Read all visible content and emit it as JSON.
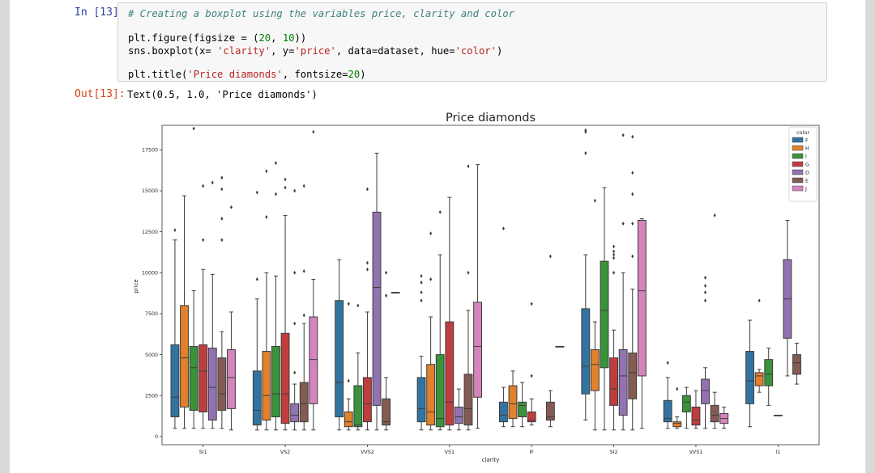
{
  "notebook": {
    "input_prompt": "In [13]:",
    "output_prompt": "Out[13]:",
    "code": {
      "comment": "# Creating a boxplot using the variables price, clarity and color",
      "l2a": "plt.figure(figsize = (",
      "l2n1": "20",
      "l2b": ", ",
      "l2n2": "10",
      "l2c": "))",
      "l3a": "sns.boxplot(x= ",
      "l3s1": "'clarity'",
      "l3b": ", y=",
      "l3s2": "'price'",
      "l3c": ", data=dataset, hue=",
      "l3s3": "'color'",
      "l3d": ")",
      "l4a": "plt.title(",
      "l4s1": "'Price diamonds'",
      "l4b": ", fontsize=",
      "l4n": "20",
      "l4c": ")"
    },
    "output": "Text(0.5, 1.0, 'Price diamonds')"
  },
  "colors": {
    "F": "#3274a1",
    "H": "#e1812c",
    "I": "#3a923a",
    "G": "#c03d3e",
    "D": "#9372b2",
    "E": "#845b53",
    "J": "#d684bd"
  },
  "chart_data": {
    "type": "box",
    "title": "Price diamonds",
    "xlabel": "clarity",
    "ylabel": "price",
    "ylim": [
      -500,
      19000
    ],
    "yticks": [
      0,
      2500,
      5000,
      7500,
      10000,
      12500,
      15000,
      17500
    ],
    "categories": [
      "SI1",
      "VS2",
      "VVS2",
      "VS1",
      "IF",
      "SI2",
      "VVS1",
      "I1"
    ],
    "hue_order": [
      "F",
      "H",
      "I",
      "G",
      "D",
      "E",
      "J"
    ],
    "legend": {
      "title": "color",
      "entries": [
        "F",
        "H",
        "I",
        "G",
        "D",
        "E",
        "J"
      ],
      "loc": "upper right"
    },
    "boxes": [
      {
        "clarity": "SI1",
        "color": "F",
        "lo": 500,
        "q1": 1200,
        "med": 2400,
        "q3": 5600,
        "hi": 12000,
        "out": [
          12600
        ]
      },
      {
        "clarity": "SI1",
        "color": "H",
        "lo": 500,
        "q1": 1800,
        "med": 4800,
        "q3": 8000,
        "hi": 14700,
        "out": []
      },
      {
        "clarity": "SI1",
        "color": "I",
        "lo": 500,
        "q1": 1600,
        "med": 4200,
        "q3": 5500,
        "hi": 8900,
        "out": [
          18800
        ]
      },
      {
        "clarity": "SI1",
        "color": "G",
        "lo": 500,
        "q1": 1500,
        "med": 4000,
        "q3": 5600,
        "hi": 10200,
        "out": [
          12000,
          15300
        ]
      },
      {
        "clarity": "SI1",
        "color": "D",
        "lo": 500,
        "q1": 1000,
        "med": 3000,
        "q3": 5400,
        "hi": 9900,
        "out": [
          15500
        ]
      },
      {
        "clarity": "SI1",
        "color": "E",
        "lo": 500,
        "q1": 1600,
        "med": 2600,
        "q3": 4800,
        "hi": 6400,
        "out": [
          12000,
          13300,
          15100,
          15800
        ]
      },
      {
        "clarity": "SI1",
        "color": "J",
        "lo": 400,
        "q1": 1700,
        "med": 3600,
        "q3": 5300,
        "hi": 7600,
        "out": [
          14000
        ]
      },
      {
        "clarity": "VS2",
        "color": "F",
        "lo": 400,
        "q1": 700,
        "med": 1600,
        "q3": 4000,
        "hi": 8400,
        "out": [
          9600,
          14900
        ]
      },
      {
        "clarity": "VS2",
        "color": "H",
        "lo": 400,
        "q1": 1000,
        "med": 2500,
        "q3": 5200,
        "hi": 10000,
        "out": [
          13400,
          16200
        ]
      },
      {
        "clarity": "VS2",
        "color": "I",
        "lo": 400,
        "q1": 1200,
        "med": 2600,
        "q3": 5500,
        "hi": 9800,
        "out": [
          14800,
          16700
        ]
      },
      {
        "clarity": "VS2",
        "color": "G",
        "lo": 400,
        "q1": 800,
        "med": 2600,
        "q3": 6300,
        "hi": 13500,
        "out": [
          15200,
          15700
        ]
      },
      {
        "clarity": "VS2",
        "color": "D",
        "lo": 400,
        "q1": 900,
        "med": 1300,
        "q3": 2000,
        "hi": 3200,
        "out": [
          3900,
          6900,
          10000,
          15000
        ]
      },
      {
        "clarity": "VS2",
        "color": "E",
        "lo": 400,
        "q1": 900,
        "med": 2000,
        "q3": 3300,
        "hi": 6900,
        "out": [
          7400,
          10100,
          15300
        ]
      },
      {
        "clarity": "VS2",
        "color": "J",
        "lo": 400,
        "q1": 2000,
        "med": 4700,
        "q3": 7300,
        "hi": 9600,
        "out": [
          18600
        ]
      },
      {
        "clarity": "VVS2",
        "color": "F",
        "lo": 400,
        "q1": 1200,
        "med": 3300,
        "q3": 8300,
        "hi": 10800,
        "out": []
      },
      {
        "clarity": "VVS2",
        "color": "H",
        "lo": 400,
        "q1": 600,
        "med": 900,
        "q3": 1500,
        "hi": 2300,
        "out": [
          3400,
          8100
        ]
      },
      {
        "clarity": "VVS2",
        "color": "I",
        "lo": 400,
        "q1": 600,
        "med": 700,
        "q3": 3100,
        "hi": 5100,
        "out": [
          8000
        ]
      },
      {
        "clarity": "VVS2",
        "color": "G",
        "lo": 400,
        "q1": 900,
        "med": 2000,
        "q3": 3600,
        "hi": 7600,
        "out": [
          10200,
          10600,
          15100
        ]
      },
      {
        "clarity": "VVS2",
        "color": "D",
        "lo": 400,
        "q1": 1900,
        "med": 9100,
        "q3": 13700,
        "hi": 17300,
        "out": []
      },
      {
        "clarity": "VVS2",
        "color": "E",
        "lo": 400,
        "q1": 700,
        "med": 900,
        "q3": 2300,
        "hi": 3600,
        "out": [
          8600,
          10000
        ]
      },
      {
        "clarity": "VVS2",
        "color": "J",
        "lo": 8800,
        "q1": 8800,
        "med": 8800,
        "q3": 8800,
        "hi": 8800,
        "out": []
      },
      {
        "clarity": "VS1",
        "color": "F",
        "lo": 400,
        "q1": 900,
        "med": 1700,
        "q3": 3600,
        "hi": 4900,
        "out": [
          8300,
          8800,
          9400,
          9800
        ]
      },
      {
        "clarity": "VS1",
        "color": "H",
        "lo": 400,
        "q1": 700,
        "med": 1500,
        "q3": 4400,
        "hi": 7300,
        "out": [
          9600,
          12400
        ]
      },
      {
        "clarity": "VS1",
        "color": "I",
        "lo": 400,
        "q1": 600,
        "med": 1100,
        "q3": 5000,
        "hi": 11100,
        "out": [
          13700
        ]
      },
      {
        "clarity": "VS1",
        "color": "G",
        "lo": 400,
        "q1": 700,
        "med": 2100,
        "q3": 7000,
        "hi": 14600,
        "out": []
      },
      {
        "clarity": "VS1",
        "color": "D",
        "lo": 400,
        "q1": 800,
        "med": 1200,
        "q3": 1800,
        "hi": 2900,
        "out": []
      },
      {
        "clarity": "VS1",
        "color": "E",
        "lo": 400,
        "q1": 700,
        "med": 1700,
        "q3": 3800,
        "hi": 7700,
        "out": [
          10000,
          16500
        ]
      },
      {
        "clarity": "VS1",
        "color": "J",
        "lo": 500,
        "q1": 2400,
        "med": 5500,
        "q3": 8200,
        "hi": 16600,
        "out": []
      },
      {
        "clarity": "IF",
        "color": "F",
        "lo": 600,
        "q1": 900,
        "med": 1300,
        "q3": 2100,
        "hi": 3000,
        "out": [
          12700
        ]
      },
      {
        "clarity": "IF",
        "color": "H",
        "lo": 600,
        "q1": 1100,
        "med": 2000,
        "q3": 3100,
        "hi": 4000,
        "out": []
      },
      {
        "clarity": "IF",
        "color": "I",
        "lo": 600,
        "q1": 1200,
        "med": 1900,
        "q3": 2100,
        "hi": 3300,
        "out": []
      },
      {
        "clarity": "IF",
        "color": "G",
        "lo": 700,
        "q1": 900,
        "med": 1000,
        "q3": 1500,
        "hi": 2300,
        "out": [
          3700,
          8100
        ]
      },
      {
        "clarity": "IF",
        "color": "E",
        "lo": 600,
        "q1": 1000,
        "med": 1200,
        "q3": 2100,
        "hi": 2800,
        "out": [
          11000
        ]
      },
      {
        "clarity": "IF",
        "color": "J",
        "lo": 5500,
        "q1": 5500,
        "med": 5500,
        "q3": 5500,
        "hi": 5500,
        "out": []
      },
      {
        "clarity": "SI2",
        "color": "F",
        "lo": 1000,
        "q1": 2600,
        "med": 4300,
        "q3": 7800,
        "hi": 11100,
        "out": [
          17300,
          18600,
          18700
        ]
      },
      {
        "clarity": "SI2",
        "color": "H",
        "lo": 400,
        "q1": 2800,
        "med": 4400,
        "q3": 5300,
        "hi": 7000,
        "out": [
          14400
        ]
      },
      {
        "clarity": "SI2",
        "color": "I",
        "lo": 400,
        "q1": 4200,
        "med": 7700,
        "q3": 10700,
        "hi": 15200,
        "out": []
      },
      {
        "clarity": "SI2",
        "color": "G",
        "lo": 400,
        "q1": 1900,
        "med": 2900,
        "q3": 4800,
        "hi": 6500,
        "out": [
          10000,
          10900,
          11100,
          11300,
          11600
        ]
      },
      {
        "clarity": "SI2",
        "color": "D",
        "lo": 400,
        "q1": 1300,
        "med": 3700,
        "q3": 5300,
        "hi": 10000,
        "out": [
          13000,
          18400
        ]
      },
      {
        "clarity": "SI2",
        "color": "E",
        "lo": 400,
        "q1": 2300,
        "med": 3900,
        "q3": 5100,
        "hi": 9000,
        "out": [
          11000,
          13000,
          14800,
          16100,
          18300
        ]
      },
      {
        "clarity": "SI2",
        "color": "J",
        "lo": 500,
        "q1": 3700,
        "med": 8900,
        "q3": 13200,
        "hi": 13300,
        "out": []
      },
      {
        "clarity": "VVS1",
        "color": "F",
        "lo": 500,
        "q1": 900,
        "med": 1100,
        "q3": 2200,
        "hi": 3600,
        "out": [
          4500
        ]
      },
      {
        "clarity": "VVS1",
        "color": "H",
        "lo": 500,
        "q1": 600,
        "med": 800,
        "q3": 900,
        "hi": 1200,
        "out": [
          2900
        ]
      },
      {
        "clarity": "VVS1",
        "color": "I",
        "lo": 500,
        "q1": 1500,
        "med": 2100,
        "q3": 2500,
        "hi": 3000,
        "out": []
      },
      {
        "clarity": "VVS1",
        "color": "G",
        "lo": 500,
        "q1": 700,
        "med": 1000,
        "q3": 1800,
        "hi": 2800,
        "out": []
      },
      {
        "clarity": "VVS1",
        "color": "D",
        "lo": 500,
        "q1": 2000,
        "med": 2800,
        "q3": 3500,
        "hi": 4200,
        "out": [
          8300,
          8800,
          9200,
          9700
        ]
      },
      {
        "clarity": "VVS1",
        "color": "E",
        "lo": 500,
        "q1": 900,
        "med": 1300,
        "q3": 1900,
        "hi": 2700,
        "out": [
          13500
        ]
      },
      {
        "clarity": "VVS1",
        "color": "J",
        "lo": 500,
        "q1": 800,
        "med": 1100,
        "q3": 1400,
        "hi": 1800,
        "out": []
      },
      {
        "clarity": "I1",
        "color": "F",
        "lo": 600,
        "q1": 2000,
        "med": 3400,
        "q3": 5200,
        "hi": 7100,
        "out": []
      },
      {
        "clarity": "I1",
        "color": "H",
        "lo": 2700,
        "q1": 3100,
        "med": 3700,
        "q3": 3900,
        "hi": 4100,
        "out": [
          8300
        ]
      },
      {
        "clarity": "I1",
        "color": "I",
        "lo": 1900,
        "q1": 3100,
        "med": 3800,
        "q3": 4700,
        "hi": 5400,
        "out": []
      },
      {
        "clarity": "I1",
        "color": "G",
        "lo": 1300,
        "q1": 1300,
        "med": 1300,
        "q3": 1300,
        "hi": 1300,
        "out": []
      },
      {
        "clarity": "I1",
        "color": "D",
        "lo": 3700,
        "q1": 6000,
        "med": 8400,
        "q3": 10800,
        "hi": 13200,
        "out": []
      },
      {
        "clarity": "I1",
        "color": "E",
        "lo": 3200,
        "q1": 3800,
        "med": 4500,
        "q3": 5000,
        "hi": 5700,
        "out": []
      }
    ]
  }
}
